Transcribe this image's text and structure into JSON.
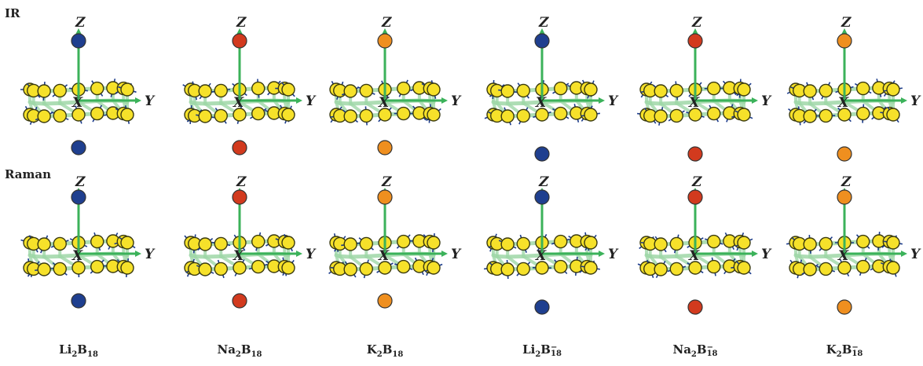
{
  "row_labels": [
    "IR",
    "Raman"
  ],
  "axis_labels": {
    "z": "Z",
    "y": "Y",
    "x": "X"
  },
  "molecules": [
    {
      "base": "Li",
      "n1": "2",
      "b": "B",
      "n2": "18",
      "sup": "",
      "metal_color": "#1f3f8f"
    },
    {
      "base": "Na",
      "n1": "2",
      "b": "B",
      "n2": "18",
      "sup": "",
      "metal_color": "#d23a1e"
    },
    {
      "base": "K",
      "n1": "2",
      "b": "B",
      "n2": "18",
      "sup": "",
      "metal_color": "#ef8f1f"
    },
    {
      "base": "Li",
      "n1": "2",
      "b": "B",
      "n2": "18",
      "sup": "−",
      "metal_color": "#1f3f8f"
    },
    {
      "base": "Na",
      "n1": "2",
      "b": "B",
      "n2": "18",
      "sup": "−",
      "metal_color": "#d23a1e"
    },
    {
      "base": "K",
      "n1": "2",
      "b": "B",
      "n2": "18",
      "sup": "−",
      "metal_color": "#ef8f1f"
    }
  ],
  "colors": {
    "boron": "#f6e12a",
    "bond": "#9fd8a8",
    "arrow": "#3bb25a",
    "vector": "#1a3a8a"
  }
}
